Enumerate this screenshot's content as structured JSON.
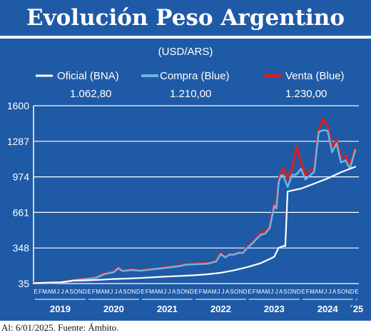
{
  "header": {
    "title": "Evolución Peso Argentino"
  },
  "footer": {
    "note": "Al: 6/01/2025. Fuente: Ámbito."
  },
  "chart_data": {
    "type": "line",
    "unit": "(USD/ARS)",
    "ylim": [
      35,
      1600
    ],
    "yticks": [
      35,
      348,
      661,
      974,
      1287,
      1600
    ],
    "ytick_labels": [
      "35",
      "348",
      "661",
      "974",
      "1287",
      "1600"
    ],
    "month_letters": [
      "E",
      "F",
      "M",
      "A",
      "M",
      "J",
      "J",
      "A",
      "S",
      "O",
      "N",
      "D"
    ],
    "years": [
      {
        "label": "2019",
        "start": 0
      },
      {
        "label": "2020",
        "start": 12
      },
      {
        "label": "2021",
        "start": 24
      },
      {
        "label": "2022",
        "start": 36
      },
      {
        "label": "2023",
        "start": 48
      },
      {
        "label": "2024",
        "start": 60
      },
      {
        "label": "´25",
        "start": 72
      }
    ],
    "total_months": 73,
    "colors": {
      "oficial": "#ffffff",
      "compra": "#6ab3e6",
      "venta": "#d7201f",
      "grid": "#ffffff",
      "plot_bg": "#1f5aa6"
    },
    "series": [
      {
        "name": "Oficial (BNA)",
        "latest_label": "1.062,80",
        "x": [
          0,
          3,
          6,
          9,
          12,
          15,
          18,
          21,
          24,
          27,
          30,
          33,
          36,
          39,
          42,
          45,
          48,
          51,
          54,
          55,
          56,
          56.5,
          57,
          60,
          63,
          66,
          69,
          72.2
        ],
        "values": [
          38,
          43,
          46,
          61,
          63,
          68,
          75,
          79,
          84,
          91,
          97,
          102,
          108,
          117,
          130,
          152,
          180,
          215,
          270,
          350,
          365,
          365,
          845,
          870,
          915,
          960,
          1015,
          1062.8
        ]
      },
      {
        "name": "Compra (Blue)",
        "latest_label": "1.210,00",
        "x": [
          0,
          3,
          6,
          8,
          9,
          12,
          14,
          16,
          18,
          19,
          20,
          21,
          22,
          24,
          27,
          30,
          33,
          34,
          36,
          39,
          41,
          42,
          43,
          44,
          45,
          46,
          47,
          48,
          49,
          50,
          51,
          52,
          53,
          54,
          54.5,
          55,
          55.5,
          56,
          57,
          58,
          59,
          60,
          61,
          62,
          63,
          63.5,
          64,
          65,
          66,
          67,
          68,
          69,
          70,
          71,
          72,
          72.2
        ],
        "values": [
          38,
          39,
          44,
          55,
          63,
          76,
          85,
          120,
          135,
          170,
          145,
          150,
          155,
          148,
          162,
          175,
          190,
          200,
          205,
          210,
          230,
          295,
          265,
          290,
          290,
          305,
          305,
          350,
          385,
          425,
          465,
          475,
          525,
          720,
          695,
          925,
          985,
          990,
          885,
          990,
          995,
          1045,
          950,
          985,
          1020,
          1205,
          1370,
          1385,
          1380,
          1190,
          1270,
          1100,
          1120,
          1045,
          1185,
          1210
        ]
      },
      {
        "name": "Venta (Blue)",
        "latest_label": "1.230,00",
        "x": [
          0,
          3,
          6,
          8,
          9,
          12,
          14,
          16,
          18,
          19,
          20,
          21,
          22,
          24,
          27,
          30,
          33,
          34,
          36,
          39,
          41,
          42,
          43,
          44,
          45,
          46,
          47,
          48,
          49,
          50,
          51,
          52,
          53,
          54,
          54.5,
          55,
          55.5,
          56,
          57,
          58,
          59,
          60,
          61,
          62,
          63,
          63.5,
          64,
          65,
          66,
          67,
          68,
          69,
          70,
          71,
          72,
          72.2
        ],
        "values": [
          40,
          41,
          46,
          58,
          66,
          80,
          89,
          126,
          140,
          178,
          150,
          155,
          160,
          152,
          166,
          180,
          195,
          205,
          210,
          215,
          235,
          305,
          270,
          295,
          295,
          310,
          310,
          360,
          395,
          435,
          480,
          490,
          540,
          740,
          715,
          950,
          1010,
          1050,
          960,
          1040,
          1245,
          1105,
          990,
          1030,
          1050,
          1235,
          1395,
          1485,
          1420,
          1240,
          1300,
          1140,
          1160,
          1070,
          1215,
          1230
        ]
      }
    ]
  }
}
